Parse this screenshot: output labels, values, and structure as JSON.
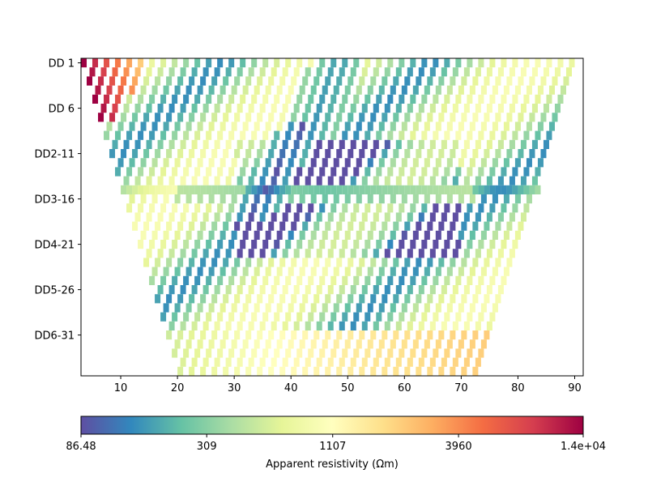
{
  "chart_data": {
    "type": "heatmap",
    "title": "",
    "subtitle": "",
    "xlabel": "",
    "ylabel": "",
    "xlim": [
      3,
      91.5
    ],
    "x_ticks": [
      10,
      20,
      30,
      40,
      50,
      60,
      70,
      80,
      90
    ],
    "y_ticks": [
      "DD 1",
      "DD 6",
      "DD2-11",
      "DD3-16",
      "DD4-21",
      "DD5-26",
      "DD6-31"
    ],
    "y_tick_rows": [
      0,
      5,
      10,
      15,
      20,
      25,
      30
    ],
    "row_count": 35,
    "grid": false,
    "pseudosection": {
      "rows": 35,
      "x_start_first_row": 3.5,
      "x_step": 1.0,
      "row_x_offset": 0.5,
      "checkerboard": true,
      "description_keys": [
        "high_zone_left",
        "low_zone_center",
        "conductive_band"
      ]
    },
    "features": {
      "high_zone_left": {
        "rows": [
          0,
          6
        ],
        "x": [
          3.5,
          15
        ],
        "value": 14000
      },
      "low_zone_upper": {
        "rows": [
          0,
          8
        ],
        "x": [
          42,
          55
        ],
        "value": 150
      },
      "low_zone_center": {
        "rows": [
          7,
          17
        ],
        "x": [
          32,
          44
        ],
        "value": 90
      },
      "conductive_band": {
        "row": 14,
        "x": [
          20,
          72
        ],
        "value": 250
      },
      "background": {
        "value": 1000
      }
    },
    "colorbar": {
      "colormap": "Spectral_r",
      "scale": "log",
      "min": 86.48,
      "max": 14000,
      "ticks": [
        "86.48",
        "309",
        "1107",
        "3960",
        "1.4e+04"
      ],
      "tick_values": [
        86.48,
        309,
        1107,
        3960,
        14000
      ],
      "label": "Apparent resistivity (Ωm)",
      "location": "bottom"
    }
  }
}
